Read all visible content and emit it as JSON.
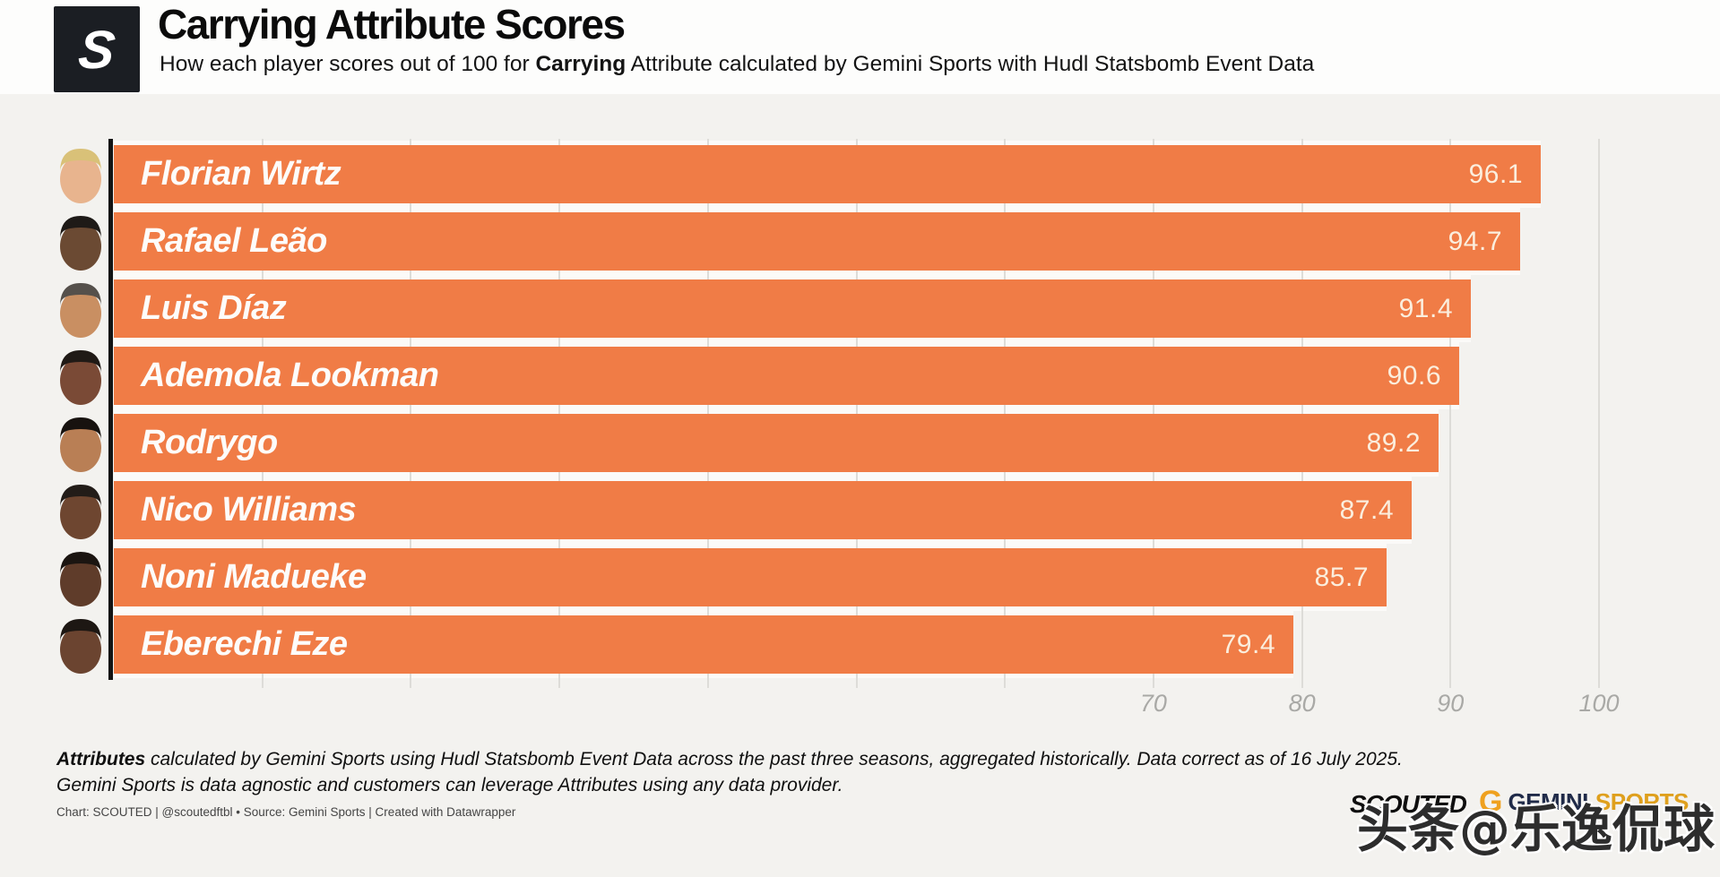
{
  "header": {
    "logo_letter": "S",
    "title": "Carrying Attribute Scores",
    "subtitle_prefix": "How each player scores out of 100 for ",
    "subtitle_bold": "Carrying",
    "subtitle_suffix": " Attribute calculated by Gemini Sports with Hudl Statsbomb Event Data"
  },
  "chart_data": {
    "type": "bar",
    "orientation": "horizontal",
    "title": "Carrying Attribute Scores",
    "categories": [
      "Florian Wirtz",
      "Rafael Leão",
      "Luis Díaz",
      "Ademola Lookman",
      "Rodrygo",
      "Nico Williams",
      "Noni Madueke",
      "Eberechi Eze"
    ],
    "values": [
      96.1,
      94.7,
      91.4,
      90.6,
      89.2,
      87.4,
      85.7,
      79.4
    ],
    "xlim": [
      0,
      100
    ],
    "ticks": [
      "70",
      "80",
      "90",
      "100"
    ],
    "tick_values": [
      70,
      80,
      90,
      100
    ],
    "grid_step": 10,
    "grid": true,
    "legend": "none",
    "bar_color": "#f07c46",
    "bar_gap_color": "#fbfaf8",
    "value_label_color": "#fbeedd",
    "name_label_color": "#fdfcfa",
    "axis_line_color": "#131313",
    "avatar_colors": [
      {
        "skin": "#e8b48e",
        "hair": "#d9c178"
      },
      {
        "skin": "#6b4a33",
        "hair": "#1e1a17"
      },
      {
        "skin": "#c98f62",
        "hair": "#55504b"
      },
      {
        "skin": "#7a4a36",
        "hair": "#201a16"
      },
      {
        "skin": "#b97f55",
        "hair": "#17120f"
      },
      {
        "skin": "#6e4630",
        "hair": "#221c18"
      },
      {
        "skin": "#5f3c2a",
        "hair": "#1b1511"
      },
      {
        "skin": "#6b4430",
        "hair": "#1d1713"
      }
    ]
  },
  "footer": {
    "note_bold": "Attributes",
    "note_line1_rest": " calculated by Gemini Sports using Hudl Statsbomb Event Data across the past three seasons, aggregated historically. Data correct as of 16 July 2025.",
    "note_line2": "Gemini Sports is data agnostic and customers can leverage Attributes using any data provider.",
    "attribution": "Chart: SCOUTED | @scoutedftbl • Source: Gemini Sports | Created with Datawrapper"
  },
  "branding": {
    "scouted_wordmark": "SCOUTED",
    "gemini_g": "G",
    "gemini_word": "GEMINI",
    "sports_word": "SPORTS",
    "gemini_navy": "#202b49",
    "sports_gold": "#dfa01d"
  },
  "watermark": {
    "text": "头条@乐逸侃球"
  }
}
